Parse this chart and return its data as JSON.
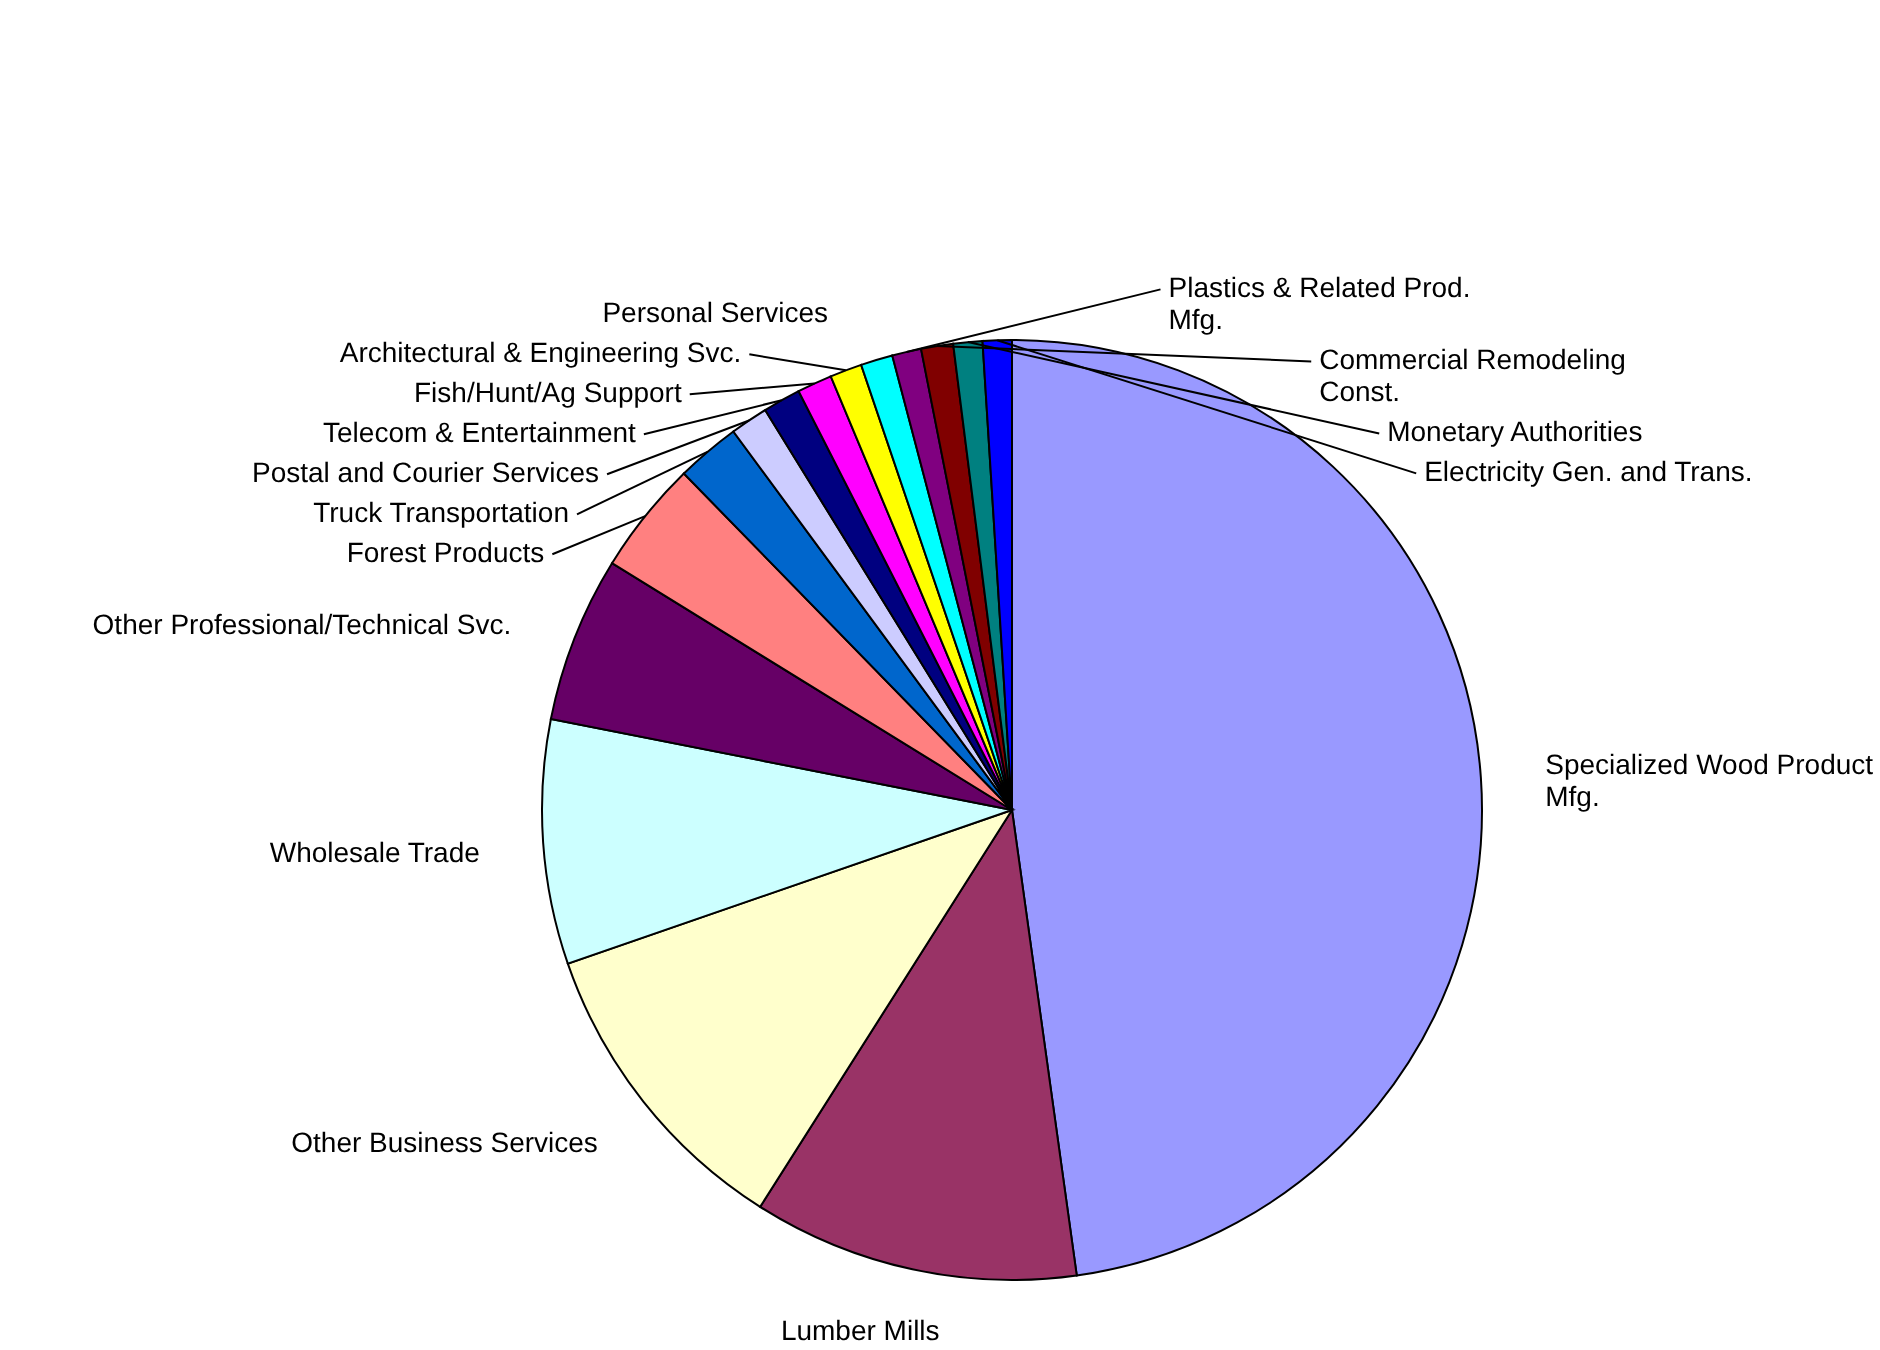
{
  "chart_data": {
    "type": "pie",
    "categories": [
      "Specialized Wood Product Mfg.",
      "Lumber Mills",
      "Other Business Services",
      "Wholesale Trade",
      "Other Professional/Technical Svc.",
      "Forest Products",
      "Truck Transportation",
      "Postal and Courier Services",
      "Telecom & Entertainment",
      "Fish/Hunt/Ag Support",
      "Architectural & Engineering Svc.",
      "Personal Services",
      "Plastics & Related Prod. Mfg.",
      "Commercial Remodeling Const.",
      "Monetary Authorities",
      "Electricity Gen. and Trans."
    ],
    "values": [
      47.8,
      11.2,
      10.7,
      8.4,
      5.7,
      3.9,
      2.2,
      1.3,
      1.3,
      1.2,
      1.1,
      1.1,
      1.0,
      1.1,
      1.0,
      1.0
    ],
    "colors": [
      "#9999ff",
      "#993366",
      "#ffffcc",
      "#ccffff",
      "#660066",
      "#ff8080",
      "#0066cc",
      "#ccccff",
      "#000080",
      "#ff00ff",
      "#ffff00",
      "#00ffff",
      "#800080",
      "#800000",
      "#008080",
      "#0000ff"
    ]
  }
}
